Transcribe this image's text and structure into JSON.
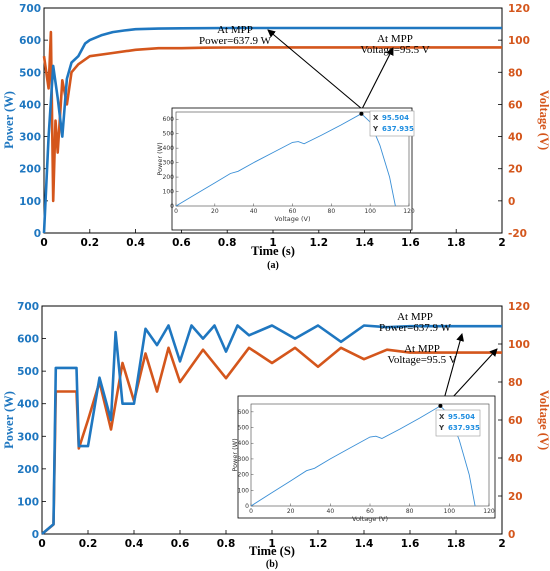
{
  "chart_data": [
    {
      "type": "line",
      "panel_label": "(a)",
      "xlabel": "Time (s)",
      "ylabel_left": "Power (W)",
      "ylabel_right": "Voltage (V)",
      "xlim": [
        0,
        2
      ],
      "ylim_left": [
        0,
        700
      ],
      "ylim_right": [
        -20,
        120
      ],
      "x_ticks": [
        "0",
        "0.2",
        "0.4",
        "0.6",
        "0.8",
        "1",
        "1.2",
        "1.4",
        "1.6",
        "1.8",
        "2"
      ],
      "yleft_ticks": [
        "0",
        "100",
        "200",
        "300",
        "400",
        "500",
        "600",
        "700"
      ],
      "yright_ticks": [
        "-20",
        "0",
        "20",
        "40",
        "60",
        "80",
        "100",
        "120"
      ],
      "series": [
        {
          "name": "Power",
          "axis": "left",
          "color": "#1f77c0",
          "x": [
            0,
            0.02,
            0.04,
            0.06,
            0.08,
            0.1,
            0.12,
            0.15,
            0.18,
            0.2,
            0.25,
            0.3,
            0.35,
            0.4,
            0.5,
            0.6,
            0.8,
            1.0,
            1.4,
            2.0
          ],
          "y": [
            0,
            300,
            520,
            420,
            300,
            480,
            530,
            550,
            590,
            600,
            615,
            625,
            630,
            634,
            636,
            637,
            637.9,
            637.9,
            637.9,
            637.9
          ]
        },
        {
          "name": "Voltage",
          "axis": "right",
          "color": "#d4561c",
          "x": [
            0,
            0.02,
            0.03,
            0.04,
            0.05,
            0.06,
            0.08,
            0.1,
            0.12,
            0.15,
            0.2,
            0.3,
            0.4,
            0.5,
            0.6,
            0.7,
            0.8,
            1.0,
            1.4,
            2.0
          ],
          "y": [
            90,
            70,
            105,
            0,
            50,
            30,
            75,
            60,
            80,
            85,
            90,
            92,
            94,
            95,
            95,
            95.3,
            95.4,
            95.5,
            95.5,
            95.5
          ]
        }
      ],
      "annotations": [
        {
          "line1": "At MPP",
          "line2": "Power=637.9 W"
        },
        {
          "line1": "At MPP",
          "line2": "Voltage=95.5 V"
        }
      ],
      "inset": {
        "xlabel": "Voltage (V)",
        "ylabel": "Power (W)",
        "xlim": [
          0,
          120
        ],
        "ylim": [
          0,
          650
        ],
        "x_ticks": [
          "0",
          "20",
          "40",
          "60",
          "80",
          "100",
          "120"
        ],
        "y_ticks": [
          "0",
          "100",
          "200",
          "300",
          "400",
          "500",
          "600"
        ],
        "x": [
          0,
          10,
          20,
          28,
          32,
          40,
          50,
          60,
          63,
          66,
          75,
          85,
          95.504,
          100,
          105,
          110,
          113
        ],
        "y": [
          0,
          80,
          160,
          225,
          240,
          300,
          370,
          440,
          445,
          430,
          490,
          560,
          637.935,
          580,
          420,
          200,
          0
        ],
        "datatip": {
          "x_label": "X",
          "x_value": "95.504",
          "y_label": "Y",
          "y_value": "637.935"
        }
      }
    },
    {
      "type": "line",
      "panel_label": "(b)",
      "xlabel": "Time (S)",
      "ylabel_left": "Power (W)",
      "ylabel_right": "Voltage (V)",
      "xlim": [
        0,
        2
      ],
      "ylim_left": [
        0,
        700
      ],
      "ylim_right": [
        0,
        120
      ],
      "x_ticks": [
        "0",
        "0.2",
        "0.4",
        "0.6",
        "0.8",
        "1",
        "1.2",
        "1.4",
        "1.6",
        "1.8",
        "2"
      ],
      "yleft_ticks": [
        "0",
        "100",
        "200",
        "300",
        "400",
        "500",
        "600",
        "700"
      ],
      "yright_ticks": [
        "0",
        "20",
        "40",
        "60",
        "80",
        "100",
        "120"
      ],
      "series": [
        {
          "name": "Power",
          "axis": "left",
          "color": "#1f77c0",
          "x": [
            0,
            0.05,
            0.06,
            0.08,
            0.15,
            0.16,
            0.2,
            0.25,
            0.3,
            0.32,
            0.35,
            0.4,
            0.45,
            0.5,
            0.55,
            0.6,
            0.65,
            0.7,
            0.75,
            0.8,
            0.85,
            0.9,
            1.0,
            1.1,
            1.2,
            1.3,
            1.4,
            1.5,
            1.6,
            1.8,
            2.0
          ],
          "y": [
            0,
            30,
            510,
            510,
            510,
            270,
            270,
            480,
            350,
            620,
            400,
            400,
            630,
            580,
            640,
            530,
            640,
            600,
            640,
            560,
            640,
            610,
            640,
            600,
            640,
            590,
            640,
            635,
            637.9,
            637.9,
            637.9
          ]
        },
        {
          "name": "Voltage",
          "axis": "right",
          "color": "#d4561c",
          "x": [
            0,
            0.05,
            0.06,
            0.08,
            0.15,
            0.16,
            0.2,
            0.25,
            0.3,
            0.35,
            0.4,
            0.45,
            0.5,
            0.55,
            0.6,
            0.7,
            0.8,
            0.9,
            1.0,
            1.1,
            1.2,
            1.3,
            1.4,
            1.5,
            1.6,
            1.8,
            2.0
          ],
          "y": [
            0,
            5,
            75,
            75,
            75,
            45,
            60,
            80,
            55,
            90,
            70,
            95,
            75,
            98,
            80,
            97,
            82,
            98,
            90,
            98,
            88,
            98,
            92,
            97,
            95.5,
            95.5,
            95.5
          ]
        }
      ],
      "annotations": [
        {
          "line1": "At MPP",
          "line2": "Power=637.9 W"
        },
        {
          "line1": "At MPP",
          "line2": "Voltage=95.5 V"
        }
      ],
      "inset": {
        "xlabel": "Voltage (V)",
        "ylabel": "Power (W)",
        "xlim": [
          0,
          120
        ],
        "ylim": [
          0,
          650
        ],
        "x_ticks": [
          "0",
          "20",
          "40",
          "60",
          "80",
          "100",
          "120"
        ],
        "y_ticks": [
          "0",
          "100",
          "200",
          "300",
          "400",
          "500",
          "600"
        ],
        "x": [
          0,
          10,
          20,
          28,
          32,
          40,
          50,
          60,
          63,
          66,
          75,
          85,
          95.504,
          100,
          105,
          110,
          113
        ],
        "y": [
          0,
          80,
          160,
          225,
          240,
          300,
          370,
          440,
          445,
          430,
          490,
          560,
          637.935,
          580,
          420,
          200,
          0
        ],
        "datatip": {
          "x_label": "X",
          "x_value": "95.504",
          "y_label": "Y",
          "y_value": "637.935"
        }
      }
    }
  ]
}
